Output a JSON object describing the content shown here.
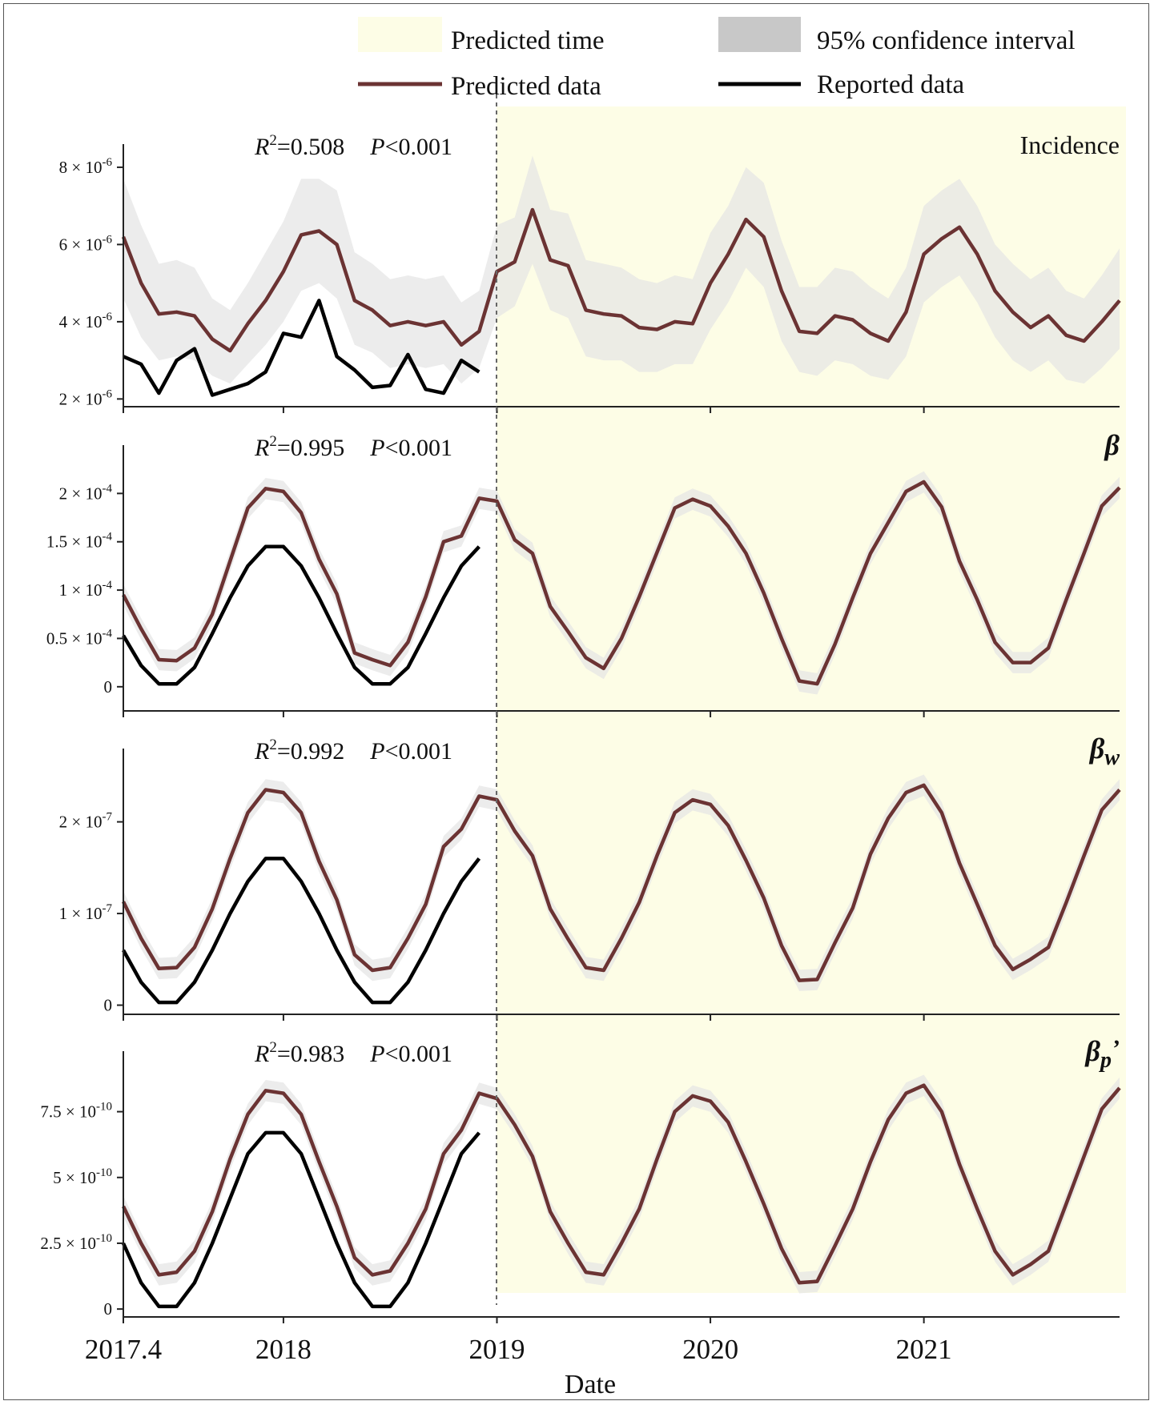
{
  "chart_data": {
    "type": "line",
    "xlabel": "Date",
    "x_ticks": [
      "2017.4",
      "2018",
      "2019",
      "2020",
      "2021"
    ],
    "x_range": [
      "2017-04",
      "2021-12"
    ],
    "predicted_start": "2019-01",
    "legend": {
      "placement": "top",
      "items": [
        {
          "key": "predicted_time",
          "label": "Predicted time",
          "swatch": "box",
          "color": "#fdfde6"
        },
        {
          "key": "ci",
          "label": "95% confidence interval",
          "swatch": "box",
          "color": "#c8c8c8"
        },
        {
          "key": "predicted",
          "label": "Predicted data",
          "swatch": "line",
          "color": "#6b3333"
        },
        {
          "key": "reported",
          "label": "Reported data",
          "swatch": "line",
          "color": "#000000"
        }
      ]
    },
    "colors": {
      "predicted": "#6b3333",
      "reported": "#000000",
      "ci": "#e4e4e4",
      "predicted_time": "#fdfde6"
    },
    "panels": [
      {
        "label": "Incidence",
        "r2_text": "=0.508",
        "p_text": "<0.001",
        "ylim": [
          1.8,
          8.6
        ],
        "yticks": [
          2,
          4,
          6,
          8
        ],
        "ytick_labels": [
          {
            "mant": "2 × 10",
            "exp": "-6"
          },
          {
            "mant": "4 × 10",
            "exp": "-6"
          },
          {
            "mant": "6 × 10",
            "exp": "-6"
          },
          {
            "mant": "8 × 10",
            "exp": "-6"
          }
        ],
        "predicted": [
          6.2,
          5.0,
          4.2,
          4.25,
          4.15,
          3.55,
          3.25,
          3.95,
          4.55,
          5.3,
          6.25,
          6.35,
          6.0,
          4.55,
          4.3,
          3.9,
          4.0,
          3.9,
          4.0,
          3.4,
          3.75,
          5.3,
          5.55,
          6.9,
          5.6,
          5.45,
          4.3,
          4.2,
          4.15,
          3.85,
          3.8,
          4.0,
          3.95,
          5.0,
          5.75,
          6.65,
          6.2,
          4.8,
          3.75,
          3.7,
          4.15,
          4.05,
          3.7,
          3.5,
          4.25,
          5.75,
          6.15,
          6.45,
          5.75,
          4.8,
          4.25,
          3.85,
          4.15,
          3.65,
          3.5,
          4.0,
          4.55
        ],
        "ci_lower": [
          4.6,
          3.6,
          3.0,
          3.1,
          3.0,
          2.6,
          2.4,
          2.9,
          3.4,
          4.0,
          4.8,
          5.0,
          4.6,
          3.4,
          3.2,
          2.8,
          2.9,
          2.8,
          2.9,
          2.4,
          2.8,
          4.1,
          4.4,
          5.5,
          4.3,
          4.1,
          3.1,
          3.0,
          3.0,
          2.7,
          2.7,
          2.9,
          2.9,
          3.8,
          4.5,
          5.4,
          4.9,
          3.5,
          2.7,
          2.6,
          3.0,
          2.9,
          2.6,
          2.5,
          3.1,
          4.5,
          4.9,
          5.2,
          4.5,
          3.6,
          3.0,
          2.7,
          3.0,
          2.5,
          2.4,
          2.8,
          3.3
        ],
        "ci_upper": [
          7.7,
          6.5,
          5.5,
          5.6,
          5.4,
          4.6,
          4.3,
          5.0,
          5.8,
          6.6,
          7.7,
          7.7,
          7.4,
          5.8,
          5.5,
          5.1,
          5.2,
          5.1,
          5.2,
          4.5,
          4.8,
          6.5,
          6.7,
          8.3,
          6.9,
          6.8,
          5.6,
          5.5,
          5.4,
          5.1,
          5.0,
          5.2,
          5.1,
          6.3,
          7.0,
          8.0,
          7.6,
          6.1,
          4.9,
          4.9,
          5.4,
          5.3,
          4.9,
          4.6,
          5.4,
          7.0,
          7.4,
          7.7,
          7.0,
          6.0,
          5.5,
          5.1,
          5.4,
          4.8,
          4.6,
          5.2,
          5.9
        ],
        "reported": [
          3.1,
          2.9,
          2.15,
          3.0,
          3.3,
          2.1,
          2.25,
          2.4,
          2.7,
          3.7,
          3.6,
          4.55,
          3.1,
          2.75,
          2.3,
          2.35,
          3.15,
          2.25,
          2.15,
          3.0,
          2.7
        ]
      },
      {
        "label": "β",
        "r2_text": "=0.995",
        "p_text": "<0.001",
        "ylim": [
          -0.25,
          2.5
        ],
        "yticks": [
          0,
          0.5,
          1,
          1.5,
          2
        ],
        "ytick_labels": [
          {
            "mant": "0",
            "exp": ""
          },
          {
            "mant": "0.5 × 10",
            "exp": "-4"
          },
          {
            "mant": "1 × 10",
            "exp": "-4"
          },
          {
            "mant": "1.5 × 10",
            "exp": "-4"
          },
          {
            "mant": "2 × 10",
            "exp": "-4"
          }
        ],
        "predicted": [
          0.95,
          0.6,
          0.28,
          0.27,
          0.4,
          0.75,
          1.3,
          1.85,
          2.05,
          2.02,
          1.8,
          1.32,
          0.96,
          0.35,
          0.28,
          0.22,
          0.46,
          0.93,
          1.5,
          1.56,
          1.95,
          1.92,
          1.52,
          1.38,
          0.83,
          0.57,
          0.3,
          0.19,
          0.5,
          0.93,
          1.39,
          1.85,
          1.94,
          1.87,
          1.66,
          1.38,
          0.97,
          0.5,
          0.06,
          0.03,
          0.44,
          0.92,
          1.38,
          1.7,
          2.02,
          2.12,
          1.86,
          1.3,
          0.9,
          0.46,
          0.25,
          0.25,
          0.4,
          0.9,
          1.38,
          1.87,
          2.06
        ],
        "reported": [
          0.53,
          0.22,
          0.03,
          0.03,
          0.2,
          0.55,
          0.92,
          1.25,
          1.45,
          1.45,
          1.25,
          0.92,
          0.55,
          0.2,
          0.03,
          0.03,
          0.2,
          0.55,
          0.92,
          1.25,
          1.45
        ]
      },
      {
        "label": "βw",
        "r2_text": "=0.992",
        "p_text": "<0.001",
        "ylim": [
          -0.1,
          2.8
        ],
        "yticks": [
          0,
          1,
          2
        ],
        "ytick_labels": [
          {
            "mant": "0",
            "exp": ""
          },
          {
            "mant": "1 × 10",
            "exp": "-7"
          },
          {
            "mant": "2 × 10",
            "exp": "-7"
          }
        ],
        "predicted": [
          1.13,
          0.73,
          0.4,
          0.41,
          0.63,
          1.05,
          1.6,
          2.1,
          2.35,
          2.32,
          2.1,
          1.57,
          1.15,
          0.55,
          0.38,
          0.41,
          0.73,
          1.1,
          1.73,
          1.92,
          2.28,
          2.24,
          1.9,
          1.63,
          1.05,
          0.72,
          0.41,
          0.38,
          0.73,
          1.12,
          1.63,
          2.1,
          2.24,
          2.19,
          1.96,
          1.58,
          1.17,
          0.65,
          0.27,
          0.28,
          0.68,
          1.06,
          1.65,
          2.04,
          2.32,
          2.4,
          2.1,
          1.55,
          1.1,
          0.65,
          0.39,
          0.5,
          0.63,
          1.12,
          1.63,
          2.13,
          2.35
        ],
        "reported": [
          0.6,
          0.25,
          0.03,
          0.03,
          0.25,
          0.6,
          1.0,
          1.35,
          1.6,
          1.6,
          1.35,
          1.0,
          0.6,
          0.25,
          0.03,
          0.03,
          0.25,
          0.6,
          1.0,
          1.35,
          1.6
        ]
      },
      {
        "label": "βp’",
        "r2_text": "=0.983",
        "p_text": "<0.001",
        "ylim": [
          -0.3,
          9.8
        ],
        "yticks": [
          0,
          2.5,
          5,
          7.5
        ],
        "ytick_labels": [
          {
            "mant": "0",
            "exp": ""
          },
          {
            "mant": "2.5 × 10",
            "exp": "-10"
          },
          {
            "mant": "5 × 10",
            "exp": "-10"
          },
          {
            "mant": "7.5 × 10",
            "exp": "-10"
          }
        ],
        "predicted": [
          3.9,
          2.5,
          1.3,
          1.4,
          2.2,
          3.7,
          5.7,
          7.4,
          8.3,
          8.2,
          7.4,
          5.6,
          3.9,
          1.95,
          1.3,
          1.45,
          2.5,
          3.8,
          5.9,
          6.8,
          8.2,
          8.0,
          7.0,
          5.8,
          3.7,
          2.5,
          1.4,
          1.3,
          2.5,
          3.8,
          5.7,
          7.5,
          8.1,
          7.9,
          7.1,
          5.6,
          4.0,
          2.3,
          1.0,
          1.05,
          2.4,
          3.8,
          5.6,
          7.2,
          8.2,
          8.5,
          7.5,
          5.5,
          3.8,
          2.2,
          1.3,
          1.7,
          2.2,
          4.0,
          5.8,
          7.6,
          8.4
        ],
        "reported": [
          2.5,
          1.0,
          0.1,
          0.1,
          1.0,
          2.5,
          4.2,
          5.9,
          6.7,
          6.7,
          5.9,
          4.2,
          2.5,
          1.0,
          0.1,
          0.1,
          1.0,
          2.5,
          4.2,
          5.9,
          6.7
        ]
      }
    ]
  }
}
